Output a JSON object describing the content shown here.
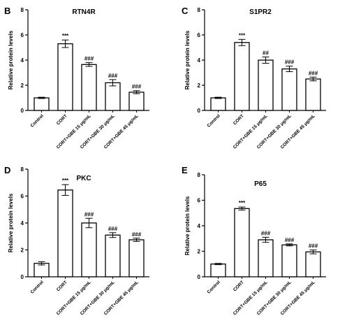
{
  "chart_data": [
    {
      "panel": "B",
      "type": "bar",
      "title": "RTN4R",
      "ylabel": "Relative protein levels",
      "ylim": [
        0,
        8
      ],
      "yticks": [
        "0",
        "2",
        "4",
        "6",
        "8"
      ],
      "categories": [
        "Control",
        "CORT",
        "CORT+GBE 15 μg/mL",
        "CORT+GBE 30 μg/mL",
        "CORT+GBE 45 μg/mL"
      ],
      "values": [
        1.0,
        5.3,
        3.65,
        2.2,
        1.45
      ],
      "errors": [
        0.05,
        0.3,
        0.15,
        0.25,
        0.12
      ],
      "annotations": [
        "",
        "***",
        "###",
        "###",
        "###"
      ]
    },
    {
      "panel": "C",
      "type": "bar",
      "title": "S1PR2",
      "ylabel": "Relative protein levels",
      "ylim": [
        0,
        8
      ],
      "yticks": [
        "0",
        "2",
        "4",
        "6",
        "8"
      ],
      "categories": [
        "Control",
        "CORT",
        "CORT+GBE 15 μg/mL",
        "CORT+GBE 30 μg/mL",
        "CORT+GBE 45 μg/mL"
      ],
      "values": [
        1.0,
        5.4,
        4.0,
        3.3,
        2.5
      ],
      "errors": [
        0.05,
        0.25,
        0.25,
        0.22,
        0.15
      ],
      "annotations": [
        "",
        "***",
        "##",
        "###",
        "###"
      ]
    },
    {
      "panel": "D",
      "type": "bar",
      "title": "PKC",
      "ylabel": "Relative protein levels",
      "ylim": [
        0,
        8
      ],
      "yticks": [
        "0",
        "2",
        "4",
        "6",
        "8"
      ],
      "categories": [
        "Control",
        "CORT",
        "CORT+GBE 15 μg/mL",
        "CORT+GBE 30 μg/mL",
        "CORT+GBE 45 μg/mL"
      ],
      "values": [
        1.0,
        6.45,
        4.0,
        3.1,
        2.75
      ],
      "errors": [
        0.12,
        0.4,
        0.35,
        0.18,
        0.12
      ],
      "annotations": [
        "",
        "***",
        "###",
        "###",
        "###"
      ]
    },
    {
      "panel": "E",
      "type": "bar",
      "title": "P65",
      "ylabel": "Relative protein levels",
      "ylim": [
        0,
        8
      ],
      "yticks": [
        "0",
        "2",
        "4",
        "6",
        "8"
      ],
      "categories": [
        "Control",
        "CORT",
        "CORT+GBE 15 μg/mL",
        "CORT+GBE 30 μg/mL",
        "CORT+GBE 45 μg/mL"
      ],
      "values": [
        1.0,
        5.35,
        2.9,
        2.5,
        1.95
      ],
      "errors": [
        0.05,
        0.12,
        0.2,
        0.08,
        0.15
      ],
      "annotations": [
        "",
        "***",
        "###",
        "###",
        "###"
      ]
    }
  ]
}
